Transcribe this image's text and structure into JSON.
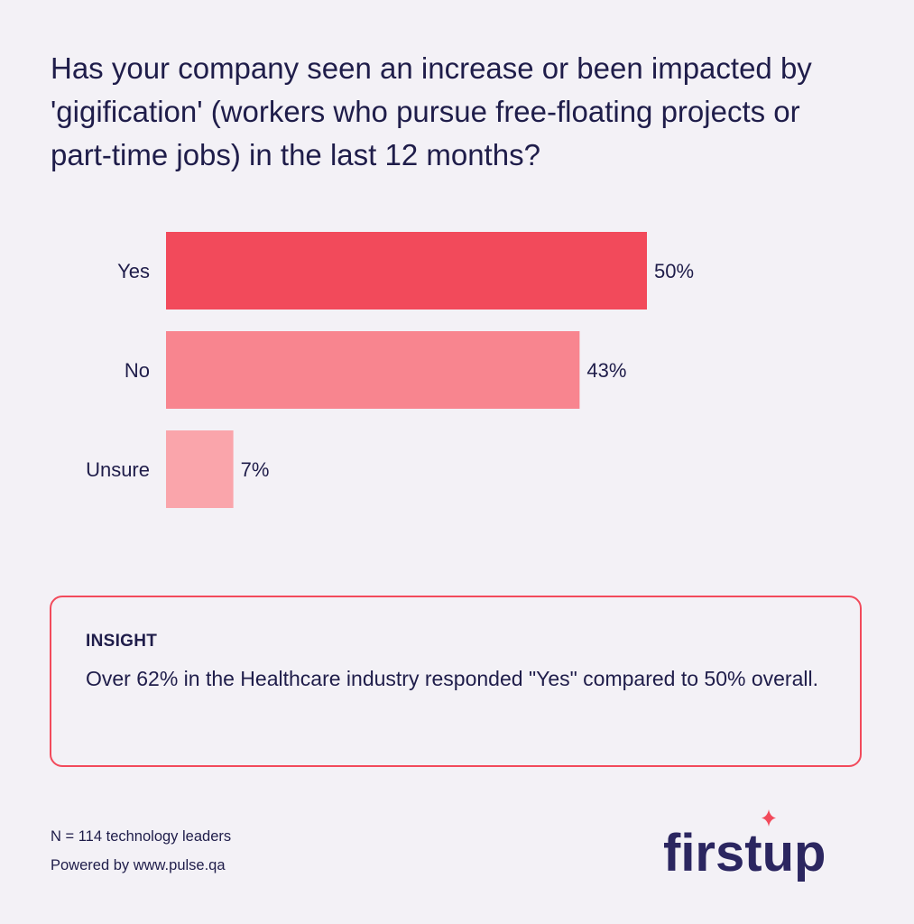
{
  "title": "Has your company seen an increase or been impacted by 'gigification' (workers who pursue free-floating projects or part-time jobs) in the last 12 months?",
  "chart_data": {
    "type": "bar",
    "orientation": "horizontal",
    "categories": [
      "Yes",
      "No",
      "Unsure"
    ],
    "values": [
      50,
      43,
      7
    ],
    "value_labels": [
      "50%",
      "43%",
      "7%"
    ],
    "colors": [
      "#f24a5b",
      "#f8858f",
      "#faa5ab"
    ],
    "xlim": [
      0,
      50
    ],
    "grid": false,
    "legend": "none"
  },
  "insight": {
    "heading": "INSIGHT",
    "text": "Over 62% in the Healthcare industry responded \"Yes\" compared to 50% overall."
  },
  "footer": {
    "sample": "N = 114 technology leaders",
    "powered_by": "Powered by www.pulse.qa"
  },
  "logo": {
    "text": "firstup",
    "text_color": "#2b2660",
    "accent_color": "#f24a5b",
    "accent_icon": "sparkle-icon"
  }
}
